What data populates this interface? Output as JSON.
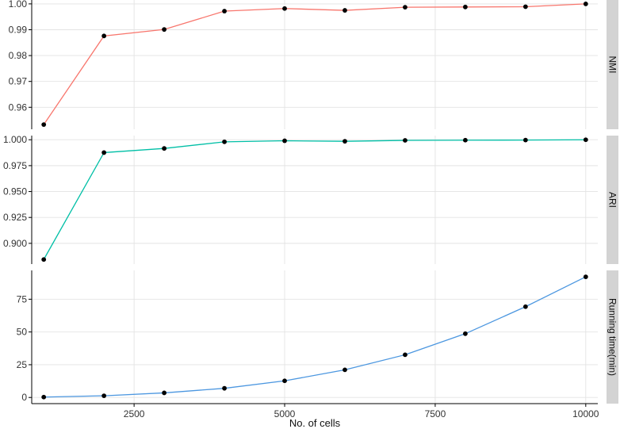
{
  "chart_data": {
    "type": "line",
    "xlabel": "No. of cells",
    "x": [
      1000,
      2000,
      3000,
      4000,
      5000,
      6000,
      7000,
      8000,
      9000,
      10000
    ],
    "x_ticks": [
      2500,
      5000,
      7500,
      10000
    ],
    "x_tick_labels": [
      "2500",
      "5000",
      "7500",
      "10000"
    ],
    "xlim": [
      800,
      10200
    ],
    "grid": true,
    "panels": [
      {
        "strip_label": "NMI",
        "color": "#F8766D",
        "ylim": [
          0.9515,
          1.0015
        ],
        "y_ticks": [
          0.96,
          0.97,
          0.98,
          0.99,
          1.0
        ],
        "y_tick_labels": [
          "0.96",
          "0.97",
          "0.98",
          "0.99",
          "1.00"
        ],
        "values": [
          0.9533,
          0.9876,
          0.9901,
          0.9972,
          0.9982,
          0.9975,
          0.9987,
          0.9988,
          0.9989,
          1.0
        ]
      },
      {
        "strip_label": "ARI",
        "color": "#00BFA6",
        "ylim": [
          0.88,
          1.004
        ],
        "y_ticks": [
          0.9,
          0.925,
          0.95,
          0.975,
          1.0
        ],
        "y_tick_labels": [
          "0.900",
          "0.925",
          "0.950",
          "0.975",
          "1.000"
        ],
        "values": [
          0.8844,
          0.9876,
          0.9916,
          0.998,
          0.999,
          0.9985,
          0.9994,
          0.9996,
          0.9997,
          1.0
        ]
      },
      {
        "strip_label": "Running time(min)",
        "color": "#4C97E0",
        "ylim": [
          -4.7,
          97
        ],
        "y_ticks": [
          0,
          25,
          50,
          75
        ],
        "y_tick_labels": [
          "0",
          "25",
          "50",
          "75"
        ],
        "values": [
          0.3,
          1.3,
          3.5,
          7.0,
          12.7,
          21.1,
          32.6,
          48.7,
          69.3,
          92.1
        ]
      }
    ]
  }
}
